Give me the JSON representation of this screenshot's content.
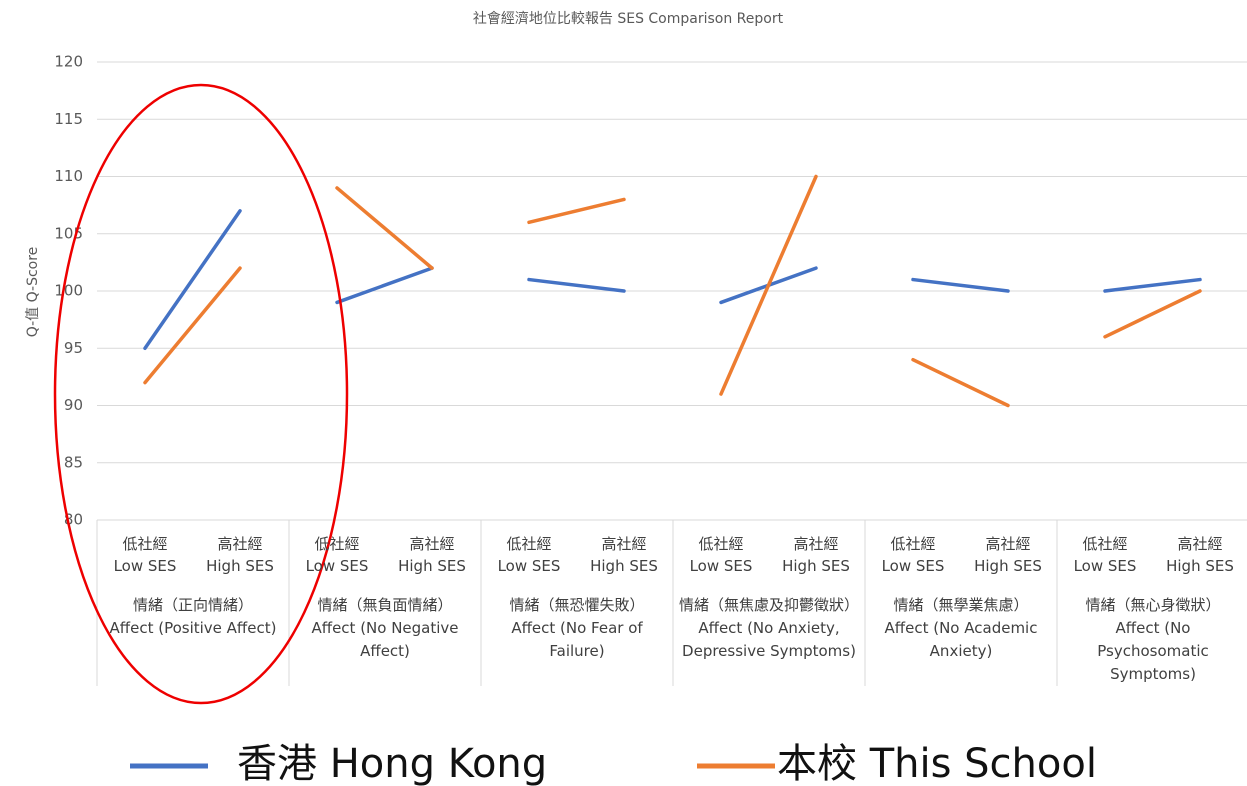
{
  "chart_data": {
    "type": "line",
    "title": "社會經濟地位比較報告 SES Comparison Report",
    "y_label": "Q-值 Q-Score",
    "categories": [
      "低社經\nLow SES",
      "高社經\nHigh SES",
      "低社經\nLow SES",
      "高社經\nHigh SES",
      "低社經\nLow SES",
      "高社經\nHigh SES",
      "低社經\nLow SES",
      "高社經\nHigh SES",
      "低社經\nLow SES",
      "高社經\nHigh SES",
      "低社經\nLow SES",
      "高社經\nHigh SES"
    ],
    "groups": [
      "情緒（正向情緒）\nAffect (Positive Affect)",
      "情緒（無負面情緒）\nAffect (No Negative Affect)",
      "情緒（無恐懼失敗）\nAffect (No Fear of Failure)",
      "情緒（無焦慮及抑鬱徵狀）\nAffect (No Anxiety, Depressive Symptoms)",
      "情緒（無學業焦慮）\nAffect (No Academic Anxiety)",
      "情緒（無心身徵狀）\nAffect (No Psychosomatic Symptoms)"
    ],
    "series": [
      {
        "name": "香港 Hong Kong",
        "color": "#4472c4",
        "values": [
          95,
          107,
          99,
          102,
          101,
          100,
          99,
          102,
          101,
          100,
          100,
          101
        ]
      },
      {
        "name": "本校 This School",
        "color": "#ed7d31",
        "values": [
          92,
          102,
          109,
          102,
          106,
          108,
          91,
          110,
          94,
          90,
          96,
          100
        ]
      }
    ],
    "ylim": [
      80,
      120
    ],
    "yticks": [
      80,
      85,
      90,
      95,
      100,
      105,
      110,
      115,
      120
    ],
    "grid": true
  }
}
